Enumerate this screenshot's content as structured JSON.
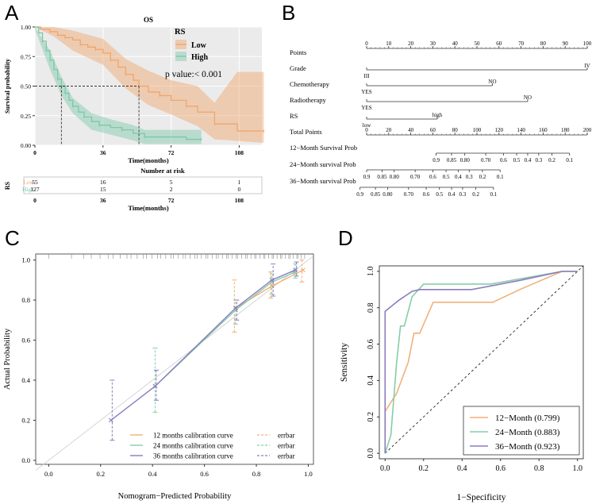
{
  "panel_letters": [
    "A",
    "B",
    "C",
    "D"
  ],
  "colors": {
    "low": "#F0A56B",
    "high": "#7CC8A9",
    "m12": "#F2B07A",
    "m24": "#86CDA7",
    "m36": "#8C7BC0",
    "panel_a_bg": "#EBEBEB"
  },
  "chart_data": [
    {
      "panel": "A",
      "type": "line",
      "title": "OS",
      "xlabel": "Time(months)",
      "ylabel": "Survival probability",
      "xlim": [
        0,
        120
      ],
      "ylim": [
        0,
        1
      ],
      "x_ticks": [
        "0",
        "36",
        "72",
        "108"
      ],
      "y_ticks": [
        "0.00",
        "0.25",
        "0.50",
        "0.75",
        "1.00"
      ],
      "legend_title": "RS",
      "pvalue_text": "p value:< 0.001",
      "median_line_y": 0.5,
      "series": [
        {
          "name": "Low",
          "color": "#F0A56B",
          "steps": [
            [
              0,
              1
            ],
            [
              3,
              0.98
            ],
            [
              8,
              0.96
            ],
            [
              12,
              0.93
            ],
            [
              16,
              0.91
            ],
            [
              20,
              0.89
            ],
            [
              24,
              0.85
            ],
            [
              28,
              0.83
            ],
            [
              32,
              0.81
            ],
            [
              36,
              0.78
            ],
            [
              40,
              0.72
            ],
            [
              44,
              0.66
            ],
            [
              48,
              0.6
            ],
            [
              52,
              0.55
            ],
            [
              55,
              0.5
            ],
            [
              60,
              0.45
            ],
            [
              66,
              0.42
            ],
            [
              72,
              0.38
            ],
            [
              80,
              0.33
            ],
            [
              86,
              0.28
            ],
            [
              95,
              0.18
            ],
            [
              107,
              0.12
            ],
            [
              121,
              0.12
            ]
          ]
        },
        {
          "name": "High",
          "color": "#7CC8A9",
          "steps": [
            [
              0,
              1
            ],
            [
              2,
              0.95
            ],
            [
              4,
              0.88
            ],
            [
              6,
              0.8
            ],
            [
              8,
              0.72
            ],
            [
              10,
              0.64
            ],
            [
              12,
              0.56
            ],
            [
              14,
              0.5
            ],
            [
              16,
              0.44
            ],
            [
              18,
              0.38
            ],
            [
              20,
              0.33
            ],
            [
              23,
              0.28
            ],
            [
              26,
              0.24
            ],
            [
              30,
              0.2
            ],
            [
              34,
              0.17
            ],
            [
              40,
              0.15
            ],
            [
              46,
              0.13
            ],
            [
              52,
              0.1
            ],
            [
              58,
              0.07
            ],
            [
              80,
              0.05
            ],
            [
              88,
              0.05
            ]
          ]
        }
      ],
      "risk_table": {
        "title": "Number at risk",
        "strata_label": "RS",
        "rows": [
          {
            "label": "Low",
            "values": [
              "55",
              "16",
              "5",
              "1"
            ]
          },
          {
            "label": "High",
            "values": [
              "127",
              "15",
              "2",
              "0"
            ]
          }
        ],
        "xlabel": "Time(months)"
      }
    },
    {
      "panel": "B",
      "type": "table",
      "rows": [
        {
          "label": "Points",
          "ticks": [
            "0",
            "10",
            "20",
            "30",
            "40",
            "50",
            "60",
            "70",
            "80",
            "90",
            "100"
          ],
          "tick_values": [
            0,
            10,
            20,
            30,
            40,
            50,
            60,
            70,
            80,
            90,
            100
          ],
          "scale": "points"
        },
        {
          "label": "Grade",
          "ticks": [
            "III",
            "IV"
          ],
          "tick_values": [
            0,
            100
          ],
          "scale": "points"
        },
        {
          "label": "Chemotherapy",
          "ticks": [
            "YES",
            "NO"
          ],
          "tick_values": [
            0,
            57
          ],
          "scale": "points"
        },
        {
          "label": "Radiotherapy",
          "ticks": [
            "YES",
            "NO"
          ],
          "tick_values": [
            0,
            73
          ],
          "scale": "points"
        },
        {
          "label": "RS",
          "ticks": [
            "low",
            "high"
          ],
          "tick_values": [
            0,
            32
          ],
          "scale": "points"
        },
        {
          "label": "Total Points",
          "ticks": [
            "0",
            "20",
            "40",
            "60",
            "80",
            "100",
            "120",
            "140",
            "160",
            "180",
            "200"
          ],
          "tick_values": [
            0,
            20,
            40,
            60,
            80,
            100,
            120,
            140,
            160,
            180,
            200
          ],
          "scale": "total"
        },
        {
          "label": "12−Month Survival Prob",
          "ticks": [
            "0.9",
            "0.85",
            "0.80",
            "0.70",
            "0.6",
            "0.5",
            "0.4",
            "0.3",
            "0.2",
            "0.1"
          ],
          "tick_values": [
            63,
            77,
            89,
            108,
            124,
            136,
            146,
            156,
            168,
            184
          ],
          "scale": "total"
        },
        {
          "label": "24−Month survival Prob",
          "ticks": [
            "0.9",
            "0.85",
            "0.80",
            "0.70",
            "0.6",
            "0.5",
            "0.4",
            "0.3",
            "0.2",
            "0.1"
          ],
          "tick_values": [
            0,
            14,
            25,
            44,
            60,
            72,
            83,
            93,
            105,
            121
          ],
          "scale": "total"
        },
        {
          "label": "36−Month survival Prob",
          "ticks": [
            "0.9",
            "0.85",
            "0.80",
            "0.70",
            "0.6",
            "0.5",
            "0.4",
            "0.3",
            "0.2",
            "0.1"
          ],
          "tick_values": [
            -6,
            8,
            19,
            38,
            54,
            66,
            77,
            87,
            99,
            115
          ],
          "scale": "total"
        }
      ]
    },
    {
      "panel": "C",
      "type": "line",
      "xlabel": "Nomogram−Predicted Probability",
      "ylabel": "Actual Probability",
      "xlim": [
        -0.05,
        1.02
      ],
      "ylim": [
        -0.02,
        1.03
      ],
      "x_ticks": [
        "0.0",
        "0.2",
        "0.4",
        "0.6",
        "0.8",
        "1.0"
      ],
      "y_ticks": [
        "0.0",
        "0.2",
        "0.4",
        "0.6",
        "0.8",
        "1.0"
      ],
      "series": [
        {
          "name": "12 months calibration curve",
          "errbar": "errbar",
          "color": "#F2B07A",
          "points": [
            [
              0.72,
              0.76
            ],
            [
              0.86,
              0.87
            ],
            [
              0.98,
              0.95
            ]
          ],
          "err": [
            [
              0.64,
              0.9
            ],
            [
              0.81,
              0.94
            ],
            [
              0.89,
              1.0
            ]
          ]
        },
        {
          "name": "24 months calibration curve",
          "errbar": "errbar",
          "color": "#86CDA7",
          "points": [
            [
              0.41,
              0.37
            ],
            [
              0.72,
              0.75
            ],
            [
              0.86,
              0.89
            ],
            [
              0.95,
              0.94
            ]
          ],
          "err": [
            [
              0.24,
              0.56
            ],
            [
              0.68,
              0.8
            ],
            [
              0.83,
              0.93
            ],
            [
              0.91,
              0.98
            ]
          ]
        },
        {
          "name": "36 months calibration curve",
          "errbar": "errbar",
          "color": "#8C7BC0",
          "points": [
            [
              0.24,
              0.2
            ],
            [
              0.41,
              0.37
            ],
            [
              0.72,
              0.76
            ],
            [
              0.86,
              0.9
            ],
            [
              0.95,
              0.95
            ]
          ],
          "err": [
            [
              0.1,
              0.4
            ],
            [
              0.3,
              0.45
            ],
            [
              0.7,
              0.8
            ],
            [
              0.82,
              0.98
            ],
            [
              0.92,
              0.99
            ]
          ]
        }
      ]
    },
    {
      "panel": "D",
      "type": "line",
      "xlabel": "1−Specificity",
      "ylabel": "Sensitivity",
      "xlim": [
        -0.03,
        1.03
      ],
      "ylim": [
        -0.03,
        1.03
      ],
      "x_ticks": [
        "0.0",
        "0.2",
        "0.4",
        "0.6",
        "0.8",
        "1.0"
      ],
      "y_ticks": [
        "0.0",
        "0.2",
        "0.4",
        "0.6",
        "0.8",
        "1.0"
      ],
      "series": [
        {
          "name": "12−Month (0.799)",
          "color": "#F2B07A",
          "points": [
            [
              0,
              0
            ],
            [
              0,
              0.1
            ],
            [
              0,
              0.23
            ],
            [
              0.06,
              0.33
            ],
            [
              0.12,
              0.5
            ],
            [
              0.15,
              0.66
            ],
            [
              0.18,
              0.66
            ],
            [
              0.25,
              0.83
            ],
            [
              0.56,
              0.83
            ],
            [
              0.7,
              0.9
            ],
            [
              0.92,
              1
            ],
            [
              1,
              1
            ]
          ]
        },
        {
          "name": "24−Month (0.883)",
          "color": "#86CDA7",
          "points": [
            [
              0,
              0
            ],
            [
              0.03,
              0.1
            ],
            [
              0.06,
              0.5
            ],
            [
              0.08,
              0.7
            ],
            [
              0.1,
              0.7
            ],
            [
              0.14,
              0.86
            ],
            [
              0.2,
              0.93
            ],
            [
              0.3,
              0.93
            ],
            [
              0.55,
              0.93
            ],
            [
              0.92,
              1
            ],
            [
              1,
              1
            ]
          ]
        },
        {
          "name": "36−Month (0.923)",
          "color": "#8C7BC0",
          "points": [
            [
              0,
              0
            ],
            [
              0,
              0.78
            ],
            [
              0.07,
              0.84
            ],
            [
              0.14,
              0.89
            ],
            [
              0.18,
              0.9
            ],
            [
              0.45,
              0.9
            ],
            [
              0.7,
              0.95
            ],
            [
              0.92,
              1
            ],
            [
              1,
              1
            ]
          ]
        }
      ]
    }
  ]
}
